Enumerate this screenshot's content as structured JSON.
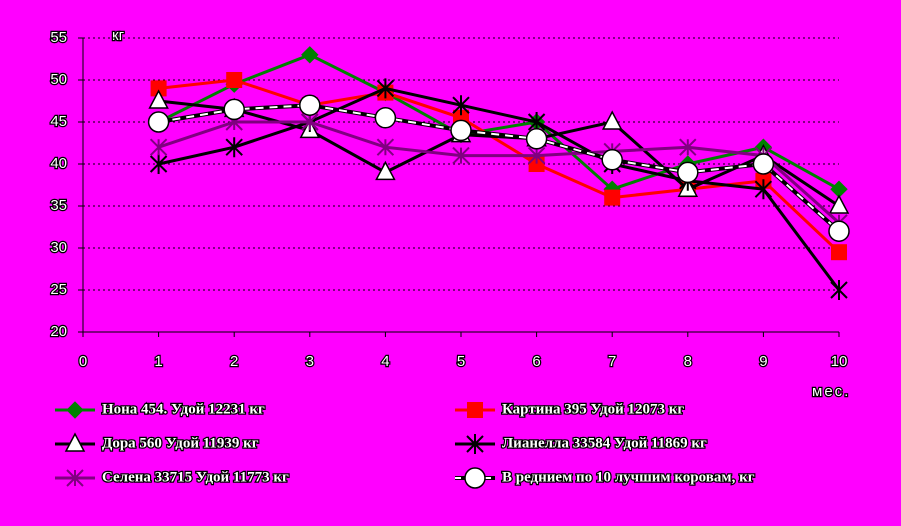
{
  "chart_data": {
    "type": "line",
    "y_label": "кг",
    "x_label": "мес.",
    "x": [
      1,
      2,
      3,
      4,
      5,
      6,
      7,
      8,
      9,
      10
    ],
    "xlim": [
      0,
      10
    ],
    "xticks": [
      0,
      1,
      2,
      3,
      4,
      5,
      6,
      7,
      8,
      9,
      10
    ],
    "ylim": [
      20,
      55
    ],
    "yticks": [
      20,
      25,
      30,
      35,
      40,
      45,
      50,
      55
    ],
    "grid": true,
    "series": [
      {
        "name": "Нона 454. Удой 12231 кг",
        "color": "#008000",
        "marker": "diamond",
        "values": [
          45,
          49.5,
          53,
          48.5,
          43.5,
          45,
          37,
          40,
          42,
          37
        ]
      },
      {
        "name": "Картина 395 Удой 12073 кг",
        "color": "#ff0000",
        "marker": "square",
        "values": [
          49,
          50,
          47,
          48.5,
          45.5,
          40,
          36,
          37,
          38,
          29.5
        ]
      },
      {
        "name": "Дора 560 Удой 11939 кг",
        "color": "#000000",
        "marker": "triangle",
        "values": [
          47.5,
          46.5,
          44,
          39,
          43.5,
          43,
          45,
          37,
          41,
          35
        ]
      },
      {
        "name": "Лианелла 33584 Удой 11869 кг",
        "color": "#000000",
        "marker": "star",
        "values": [
          40,
          42,
          45,
          49,
          47,
          45,
          40,
          38,
          37,
          25
        ]
      },
      {
        "name": "Селена 33715 Удой 11773 кг",
        "color": "#800080",
        "marker": "asterisk",
        "values": [
          42,
          45,
          45,
          42,
          41,
          41,
          41.5,
          42,
          41,
          33
        ]
      },
      {
        "name": "В реднием по 10 лучшим коровам, кг",
        "color": "#000000",
        "marker": "circle",
        "values": [
          45,
          46.5,
          47,
          45.5,
          44,
          43,
          40.5,
          39,
          40,
          32
        ]
      }
    ]
  }
}
